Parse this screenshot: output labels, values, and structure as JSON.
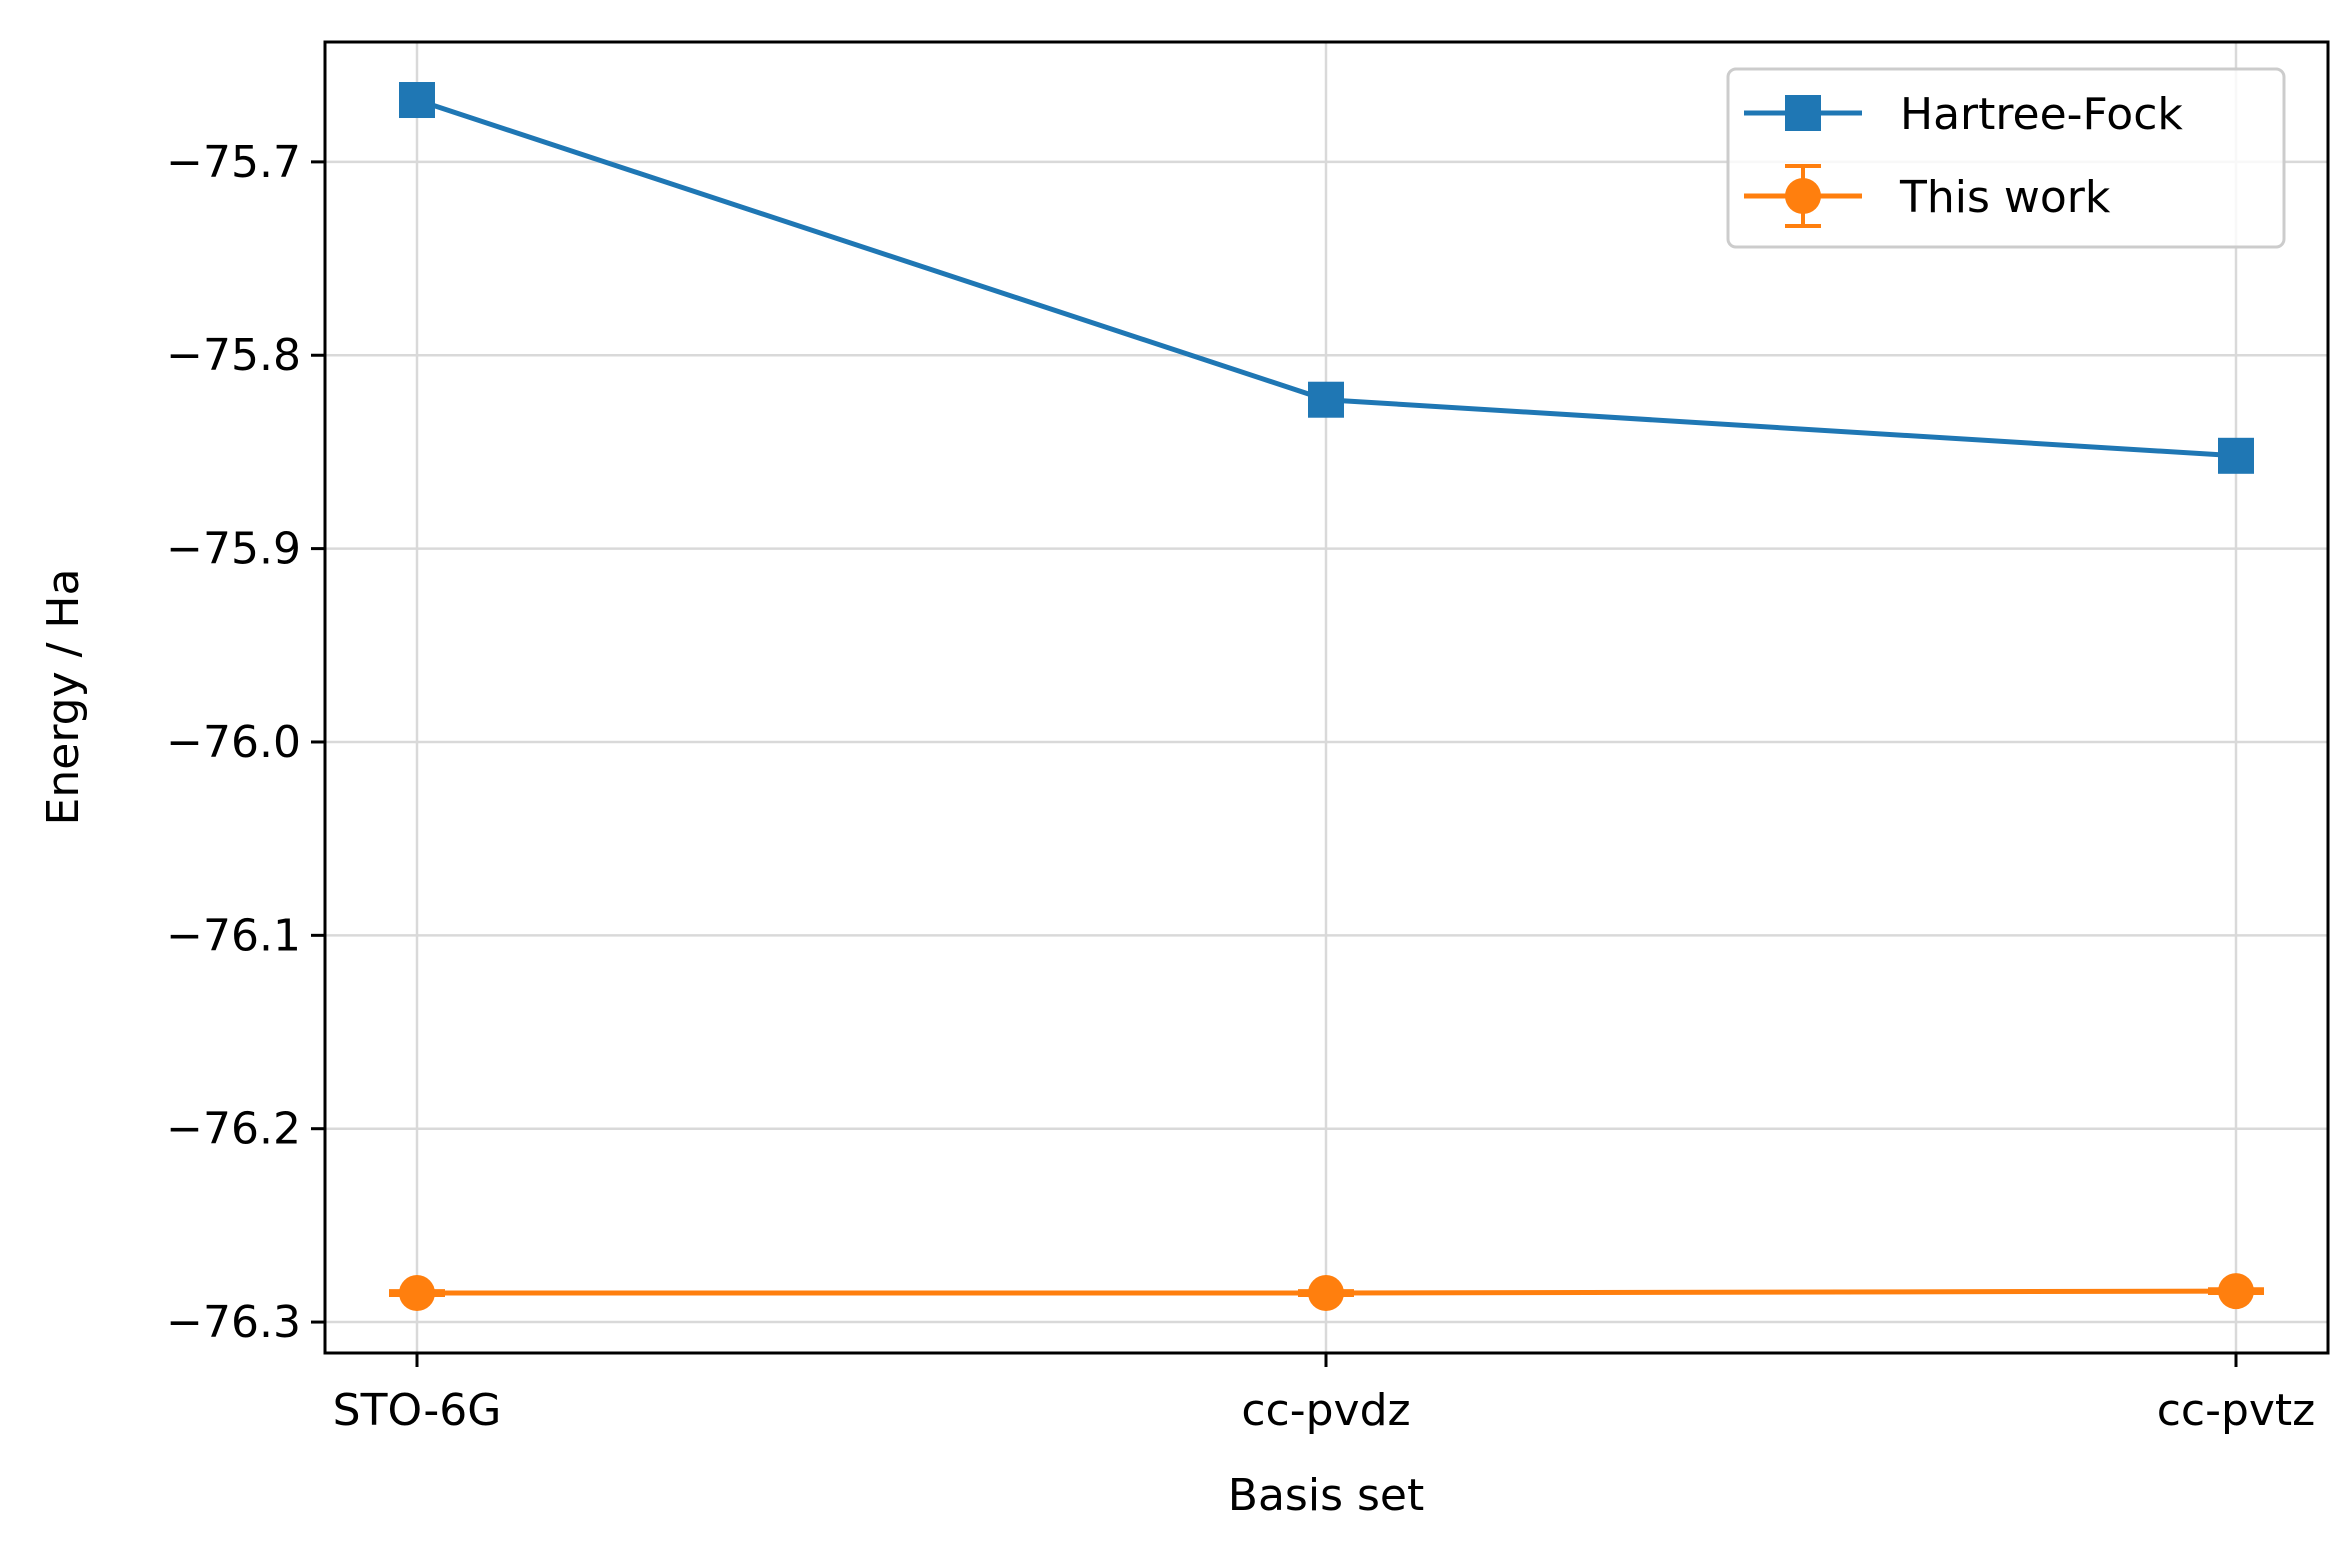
{
  "chart_data": {
    "type": "line",
    "xlabel": "Basis set",
    "ylabel": "Energy / Ha",
    "categories": [
      "STO-6G",
      "cc-pvdz",
      "cc-pvtz"
    ],
    "ylim": [
      -76.316,
      -75.638
    ],
    "yticks": [
      -75.7,
      -75.8,
      -75.9,
      -76.0,
      -76.1,
      -76.2,
      -76.3
    ],
    "ytick_labels": [
      "−75.7",
      "−75.8",
      "−75.9",
      "−76.0",
      "−76.1",
      "−76.2",
      "−76.3"
    ],
    "grid": true,
    "legend_position": "top-right",
    "series": [
      {
        "name": "Hartree-Fock",
        "values": [
          -75.668,
          -75.823,
          -75.852
        ],
        "color": "#1f77b4",
        "marker": "square"
      },
      {
        "name": "This work",
        "values": [
          -76.285,
          -76.285,
          -76.284
        ],
        "errors": [
          0.001,
          0.001,
          0.001
        ],
        "color": "#ff7f0e",
        "marker": "circle"
      }
    ]
  }
}
